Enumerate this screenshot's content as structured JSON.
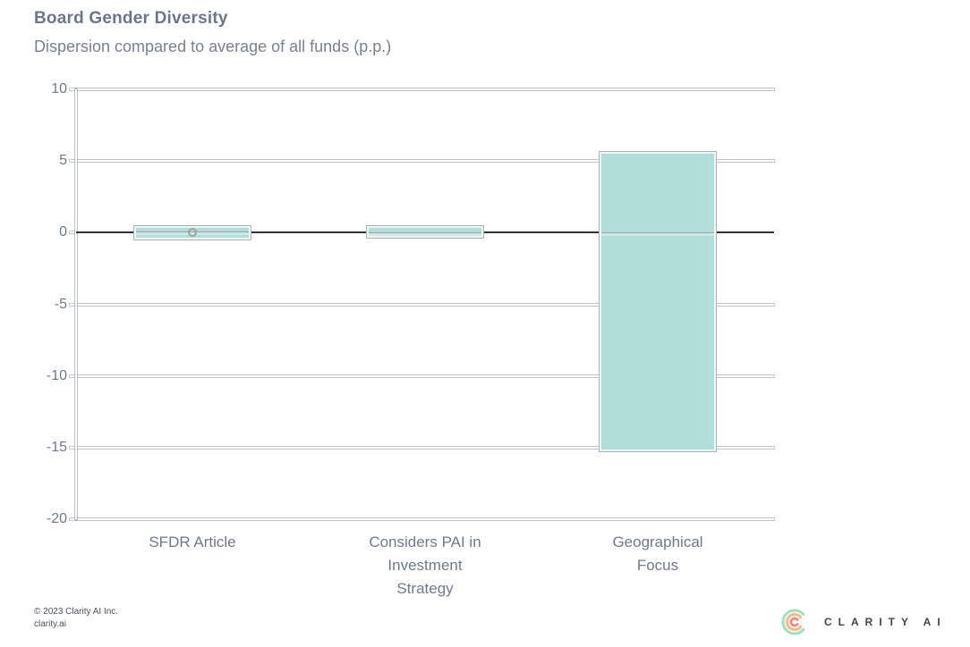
{
  "header": {
    "title": "Board Gender Diversity",
    "subtitle": "Dispersion compared to average of all funds (p.p.)"
  },
  "chart_data": {
    "type": "box",
    "title": "Board Gender Diversity",
    "subtitle": "Dispersion compared to average of all funds (p.p.)",
    "unit": "p.p.",
    "ylim": [
      -20,
      10
    ],
    "yticks": [
      10,
      5,
      0,
      -5,
      -10,
      -15,
      -20
    ],
    "zero_line_value": 0,
    "grid": "on",
    "categories": [
      "SFDR Article",
      "Considers PAI in\nInvestment\nStrategy",
      "Geographical\nFocus"
    ],
    "series": [
      {
        "name": "SFDR Article",
        "high": 0.55,
        "low": -0.55,
        "median": 0.1,
        "outlier": 0
      },
      {
        "name": "Considers PAI in Investment Strategy",
        "high": 0.5,
        "low": -0.4,
        "median": 0.05
      },
      {
        "name": "Geographical Focus",
        "high": 5.7,
        "low": -15.3,
        "median": 0.05
      }
    ],
    "colors": {
      "box_fill": "#b2ded9",
      "box_border": "#a9b4ae",
      "gridline": "#ffffff",
      "zero_line": "#2e3338",
      "label_text": "#6e7a8c"
    }
  },
  "footer": {
    "copyright": "© 2023 Clarity AI Inc.\nclarity.ai"
  },
  "logo": {
    "text": "CLARITY AI",
    "arc_colors": [
      "#9fe0bd",
      "#f4be8c",
      "#ec8c8c"
    ]
  }
}
